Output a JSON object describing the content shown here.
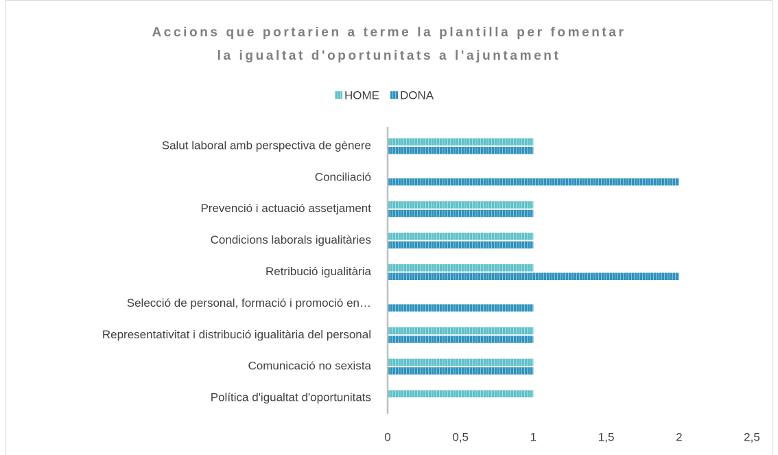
{
  "chart_data": {
    "type": "barh",
    "title": [
      "Accions que portarien a terme la plantilla per fomentar",
      "la igualtat d'oportunitats a l'ajuntament"
    ],
    "categories": [
      "Salut laboral amb perspectiva de gènere ",
      "Conciliació",
      "Prevenció i actuació assetjament ",
      "Condicions laborals igualitàries",
      "Retribució igualitària",
      "Selecció de personal, formació i promoció en…",
      "Representativitat i distribució igualitària del personal",
      "Comunicació no sexista",
      "Política d'igualtat d'oportunitats"
    ],
    "series": [
      {
        "name": "HOME",
        "color": "#5fc1c9",
        "values": [
          1,
          0,
          1,
          1,
          1,
          0,
          1,
          1,
          1
        ]
      },
      {
        "name": "DONA",
        "color": "#2f93bd",
        "values": [
          1,
          2,
          1,
          1,
          2,
          1,
          1,
          1,
          0
        ]
      }
    ],
    "xlim": [
      0,
      2.5
    ],
    "xticks": [
      0,
      {
        "value": 0.5,
        "label": "0,5"
      },
      1,
      {
        "value": 1.5,
        "label": "1,5"
      },
      2,
      {
        "value": 2.5,
        "label": "2,5"
      }
    ],
    "legend": "top",
    "grid": false
  }
}
